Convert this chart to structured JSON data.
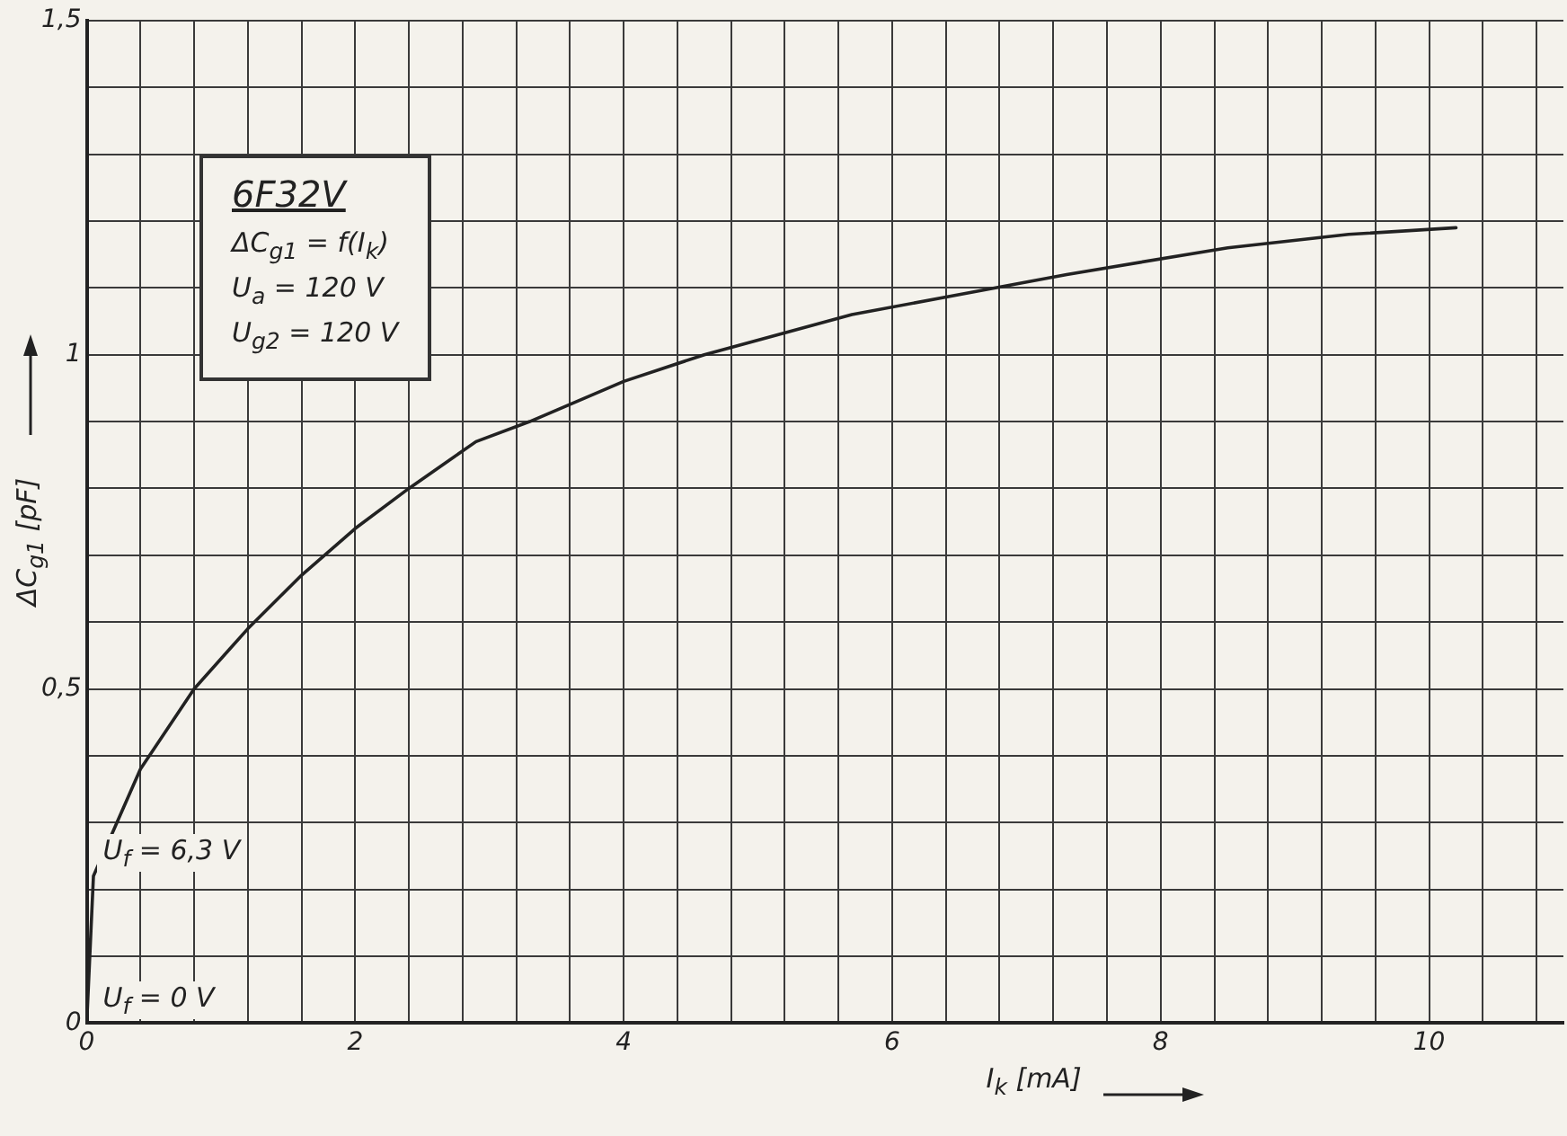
{
  "chart_data": {
    "type": "line",
    "xlabel": "I$_{k}$ [mA]",
    "ylabel": "ΔC$_{g1}$ [pF]",
    "xlim": [
      0,
      11
    ],
    "ylim": [
      0,
      1.5
    ],
    "xticks": [
      0,
      {
        "value": 0.4,
        "label": null
      },
      {
        "value": 0.8,
        "label": null
      },
      {
        "value": 1.2,
        "label": null
      },
      {
        "value": 1.6,
        "label": null
      },
      2,
      {
        "value": 2.4,
        "label": null
      },
      {
        "value": 2.8,
        "label": null
      },
      {
        "value": 3.2,
        "label": null
      },
      {
        "value": 3.6,
        "label": null
      },
      4,
      {
        "value": 4.4,
        "label": null
      },
      {
        "value": 4.8,
        "label": null
      },
      {
        "value": 5.2,
        "label": null
      },
      {
        "value": 5.6,
        "label": null
      },
      6,
      {
        "value": 6.4,
        "label": null
      },
      {
        "value": 6.8,
        "label": null
      },
      {
        "value": 7.2,
        "label": null
      },
      {
        "value": 7.6,
        "label": null
      },
      8,
      {
        "value": 8.4,
        "label": null
      },
      {
        "value": 8.8,
        "label": null
      },
      {
        "value": 9.2,
        "label": null
      },
      {
        "value": 9.6,
        "label": null
      },
      10,
      {
        "value": 10.4,
        "label": null
      },
      {
        "value": 10.8,
        "label": null
      }
    ],
    "yticks": [
      0,
      {
        "value": 0.1,
        "label": null
      },
      {
        "value": 0.2,
        "label": null
      },
      {
        "value": 0.3,
        "label": null
      },
      {
        "value": 0.4,
        "label": null
      },
      {
        "value": 0.5,
        "label": "0,5"
      },
      {
        "value": 0.6,
        "label": null
      },
      {
        "value": 0.7,
        "label": null
      },
      {
        "value": 0.8,
        "label": null
      },
      {
        "value": 0.9,
        "label": null
      },
      1,
      {
        "value": 1.1,
        "label": null
      },
      {
        "value": 1.2,
        "label": null
      },
      {
        "value": 1.3,
        "label": null
      },
      {
        "value": 1.4,
        "label": null
      },
      {
        "value": 1.5,
        "label": "1,5"
      }
    ],
    "grid": true,
    "marker": "none",
    "line_style": "solid",
    "legend": false,
    "series": [
      {
        "color": "#222222",
        "x": [
          0,
          0.05,
          0.4,
          0.8,
          1.2,
          1.6,
          2,
          2.4,
          2.9,
          3.3,
          4,
          4.6,
          5.7,
          6.5,
          7.3,
          8.5,
          9.4,
          10.2
        ],
        "values": [
          0,
          0.22,
          0.38,
          0.5,
          0.59,
          0.67,
          0.74,
          0.8,
          0.87,
          0.9,
          0.96,
          1.0,
          1.06,
          1.09,
          1.12,
          1.16,
          1.18,
          1.19
        ]
      }
    ],
    "annotations": [
      "6F32V",
      "ΔC$_{g1}$ = f(I$_{k}$)",
      "U$_{a}$ = 120 V",
      "U$_{g2}$ = 120 V",
      {
        "text": "U$_{f}$ = 6,3 V",
        "x": 0,
        "y": 0.22
      },
      {
        "text": "U$_{f}$ = 0 V",
        "x": 0,
        "y": 0
      }
    ]
  }
}
